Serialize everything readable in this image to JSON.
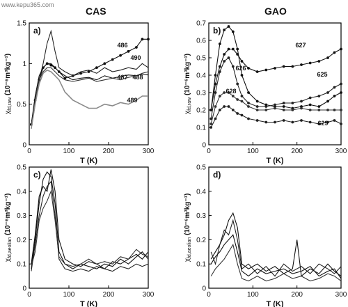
{
  "watermark": "www.kepu365.com",
  "column_titles": [
    "CAS",
    "GAO"
  ],
  "chart_data": [
    {
      "panel": "a)",
      "type": "line",
      "xlabel": "T (K)",
      "ylabel_main": "χ",
      "ylabel_sub": "fd,raw",
      "ylabel_unit": "(10⁻⁶m³kg⁻¹)",
      "xlim": [
        0,
        300
      ],
      "ylim": [
        0,
        1.5
      ],
      "xticks": [
        0,
        100,
        200,
        300
      ],
      "yticks": [
        0,
        0.5,
        1,
        1.5
      ],
      "ytick_labels": [
        "0",
        "0.5",
        "1",
        "1.5"
      ],
      "series": [
        {
          "name": "486",
          "color": "#111111",
          "marker": "dot",
          "x": [
            5,
            15,
            25,
            35,
            45,
            55,
            65,
            75,
            90,
            110,
            130,
            150,
            170,
            190,
            210,
            230,
            250,
            270,
            285,
            300
          ],
          "y": [
            0.25,
            0.55,
            0.8,
            0.95,
            1.0,
            0.98,
            0.95,
            0.9,
            0.82,
            0.85,
            0.88,
            0.9,
            0.95,
            1.0,
            1.05,
            1.1,
            1.15,
            1.2,
            1.3,
            1.3
          ]
        },
        {
          "name": "490",
          "color": "#222222",
          "marker": "none",
          "x": [
            5,
            15,
            25,
            35,
            45,
            55,
            65,
            75,
            90,
            110,
            130,
            150,
            170,
            190,
            210,
            230,
            250,
            270,
            285,
            300
          ],
          "y": [
            0.2,
            0.5,
            0.8,
            1.0,
            1.25,
            1.4,
            1.15,
            0.95,
            0.9,
            0.85,
            0.9,
            0.92,
            0.88,
            0.95,
            0.9,
            0.92,
            0.95,
            0.93,
            1.0,
            0.95
          ]
        },
        {
          "name": "487",
          "color": "#111111",
          "marker": "none",
          "x": [
            5,
            15,
            25,
            35,
            45,
            55,
            65,
            75,
            90,
            110,
            130,
            150,
            170,
            190,
            210,
            230,
            250,
            270,
            285,
            300
          ],
          "y": [
            0.25,
            0.6,
            0.85,
            0.95,
            1.0,
            1.0,
            0.95,
            0.9,
            0.85,
            0.8,
            0.82,
            0.83,
            0.8,
            0.85,
            0.82,
            0.84,
            0.86,
            0.85,
            0.87,
            0.86
          ]
        },
        {
          "name": "488",
          "color": "#333333",
          "marker": "none",
          "x": [
            5,
            15,
            25,
            35,
            45,
            55,
            65,
            75,
            90,
            110,
            130,
            150,
            170,
            190,
            210,
            230,
            250,
            270,
            285,
            300
          ],
          "y": [
            0.2,
            0.55,
            0.8,
            0.9,
            0.95,
            0.95,
            0.9,
            0.85,
            0.8,
            0.78,
            0.8,
            0.82,
            0.78,
            0.8,
            0.82,
            0.8,
            0.83,
            0.85,
            0.88,
            0.9
          ]
        },
        {
          "name": "489",
          "color": "#8a8a8a",
          "marker": "none",
          "x": [
            5,
            15,
            25,
            35,
            45,
            55,
            65,
            75,
            90,
            110,
            130,
            150,
            170,
            190,
            210,
            230,
            250,
            270,
            285,
            300
          ],
          "y": [
            0.2,
            0.5,
            0.75,
            0.88,
            0.92,
            0.9,
            0.85,
            0.8,
            0.65,
            0.55,
            0.5,
            0.45,
            0.45,
            0.5,
            0.48,
            0.52,
            0.5,
            0.55,
            0.6,
            0.6
          ]
        }
      ]
    },
    {
      "panel": "b)",
      "type": "line",
      "xlabel": "T (K)",
      "ylabel_main": "χ",
      "ylabel_sub": "fd,raw",
      "ylabel_unit": "(10⁻⁶m³kg⁻¹)",
      "xlim": [
        0,
        300
      ],
      "ylim": [
        0,
        0.7
      ],
      "xticks": [
        0,
        100,
        200,
        300
      ],
      "yticks": [
        0,
        0.1,
        0.2,
        0.3,
        0.4,
        0.5,
        0.6,
        0.7
      ],
      "ytick_labels": [
        "0",
        "0.1",
        "0.2",
        "0.3",
        "0.4",
        "0.5",
        "0.6",
        "0.7"
      ],
      "series": [
        {
          "name": "627",
          "color": "#111111",
          "marker": "dot",
          "x": [
            5,
            15,
            25,
            35,
            45,
            55,
            65,
            75,
            90,
            110,
            130,
            150,
            170,
            190,
            210,
            230,
            250,
            270,
            285,
            300
          ],
          "y": [
            0.2,
            0.35,
            0.45,
            0.52,
            0.55,
            0.55,
            0.52,
            0.48,
            0.44,
            0.42,
            0.43,
            0.44,
            0.45,
            0.45,
            0.46,
            0.47,
            0.48,
            0.5,
            0.53,
            0.55
          ]
        },
        {
          "name": "626",
          "color": "#111111",
          "marker": "dot",
          "x": [
            5,
            15,
            25,
            35,
            45,
            55,
            65,
            75,
            90,
            110,
            130,
            150,
            170,
            190,
            210,
            230,
            250,
            270,
            285,
            300
          ],
          "y": [
            0.2,
            0.4,
            0.58,
            0.66,
            0.68,
            0.65,
            0.55,
            0.4,
            0.3,
            0.25,
            0.23,
            0.22,
            0.22,
            0.21,
            0.22,
            0.23,
            0.22,
            0.25,
            0.28,
            0.3
          ]
        },
        {
          "name": "625",
          "color": "#222222",
          "marker": "dot",
          "x": [
            5,
            15,
            25,
            35,
            45,
            55,
            65,
            75,
            90,
            110,
            130,
            150,
            170,
            190,
            210,
            230,
            250,
            270,
            285,
            300
          ],
          "y": [
            0.15,
            0.3,
            0.42,
            0.48,
            0.5,
            0.45,
            0.35,
            0.28,
            0.24,
            0.22,
            0.22,
            0.23,
            0.24,
            0.24,
            0.25,
            0.27,
            0.28,
            0.3,
            0.33,
            0.35
          ]
        },
        {
          "name": "628",
          "color": "#333333",
          "marker": "dot",
          "x": [
            5,
            15,
            25,
            35,
            45,
            55,
            65,
            75,
            90,
            110,
            130,
            150,
            170,
            190,
            210,
            230,
            250,
            270,
            285,
            300
          ],
          "y": [
            0.12,
            0.22,
            0.28,
            0.3,
            0.3,
            0.28,
            0.26,
            0.25,
            0.22,
            0.2,
            0.2,
            0.21,
            0.2,
            0.2,
            0.21,
            0.2,
            0.2,
            0.2,
            0.2,
            0.2
          ]
        },
        {
          "name": "629",
          "color": "#222222",
          "marker": "dot",
          "x": [
            5,
            15,
            25,
            35,
            45,
            55,
            65,
            75,
            90,
            110,
            130,
            150,
            170,
            190,
            210,
            230,
            250,
            270,
            285,
            300
          ],
          "y": [
            0.1,
            0.15,
            0.2,
            0.22,
            0.22,
            0.2,
            0.18,
            0.17,
            0.15,
            0.14,
            0.13,
            0.13,
            0.14,
            0.13,
            0.14,
            0.13,
            0.12,
            0.13,
            0.14,
            0.12
          ]
        }
      ]
    },
    {
      "panel": "c)",
      "type": "line",
      "xlabel": "T (K)",
      "ylabel_main": "χ",
      "ylabel_sub": "fd,aeolian",
      "ylabel_unit": "(10⁻⁶m³kg⁻¹)",
      "xlim": [
        0,
        300
      ],
      "ylim": [
        0,
        0.5
      ],
      "xticks": [
        0,
        100,
        200,
        300
      ],
      "yticks": [
        0,
        0.1,
        0.2,
        0.3,
        0.4,
        0.5
      ],
      "ytick_labels": [
        "0",
        "0.1",
        "0.2",
        "0.3",
        "0.4",
        "0.5"
      ],
      "series": [
        {
          "color": "#111111",
          "x": [
            5,
            15,
            25,
            35,
            45,
            55,
            65,
            75,
            90,
            110,
            130,
            150,
            170,
            190,
            210,
            230,
            250,
            270,
            285,
            300
          ],
          "y": [
            0.08,
            0.2,
            0.35,
            0.45,
            0.48,
            0.46,
            0.35,
            0.15,
            0.1,
            0.08,
            0.1,
            0.09,
            0.08,
            0.1,
            0.09,
            0.12,
            0.1,
            0.13,
            0.15,
            0.12
          ]
        },
        {
          "color": "#111111",
          "x": [
            5,
            15,
            25,
            35,
            45,
            55,
            65,
            75,
            90,
            110,
            130,
            150,
            170,
            190,
            210,
            230,
            250,
            270,
            285,
            300
          ],
          "y": [
            0.1,
            0.22,
            0.38,
            0.42,
            0.4,
            0.49,
            0.4,
            0.2,
            0.12,
            0.1,
            0.09,
            0.11,
            0.1,
            0.08,
            0.11,
            0.1,
            0.12,
            0.14,
            0.12,
            0.15
          ]
        },
        {
          "color": "#222222",
          "x": [
            5,
            15,
            25,
            35,
            45,
            55,
            65,
            75,
            90,
            110,
            130,
            150,
            170,
            190,
            210,
            230,
            250,
            270,
            285,
            300
          ],
          "y": [
            0.07,
            0.18,
            0.3,
            0.38,
            0.42,
            0.44,
            0.3,
            0.12,
            0.08,
            0.07,
            0.08,
            0.07,
            0.09,
            0.08,
            0.07,
            0.09,
            0.08,
            0.1,
            0.09,
            0.1
          ]
        },
        {
          "color": "#333333",
          "x": [
            5,
            15,
            25,
            35,
            45,
            55,
            65,
            75,
            90,
            110,
            130,
            150,
            170,
            190,
            210,
            230,
            250,
            270,
            285,
            300
          ],
          "y": [
            0.09,
            0.15,
            0.28,
            0.33,
            0.36,
            0.4,
            0.28,
            0.13,
            0.1,
            0.09,
            0.1,
            0.12,
            0.1,
            0.11,
            0.1,
            0.13,
            0.12,
            0.16,
            0.14,
            0.13
          ]
        }
      ]
    },
    {
      "panel": "d)",
      "type": "line",
      "xlabel": "T (K)",
      "ylabel_main": "χ",
      "ylabel_sub": "fd,aeolian",
      "ylabel_unit": "(10⁻⁶m³kg⁻¹)",
      "xlim": [
        0,
        300
      ],
      "ylim": [
        0,
        0.5
      ],
      "xticks": [
        0,
        100,
        200,
        300
      ],
      "yticks": [
        0,
        0.1,
        0.2,
        0.3,
        0.4,
        0.5
      ],
      "ytick_labels": [
        "0",
        "0.1",
        "0.2",
        "0.3",
        "0.4",
        "0.5"
      ],
      "series": [
        {
          "color": "#111111",
          "x": [
            5,
            15,
            25,
            35,
            45,
            55,
            65,
            75,
            90,
            110,
            130,
            150,
            170,
            190,
            200,
            210,
            230,
            250,
            270,
            285,
            300
          ],
          "y": [
            0.12,
            0.15,
            0.18,
            0.22,
            0.28,
            0.31,
            0.25,
            0.1,
            0.08,
            0.1,
            0.07,
            0.09,
            0.06,
            0.08,
            0.2,
            0.05,
            0.08,
            0.06,
            0.1,
            0.07,
            0.05
          ]
        },
        {
          "color": "#222222",
          "x": [
            5,
            15,
            25,
            35,
            45,
            55,
            65,
            75,
            90,
            110,
            130,
            150,
            170,
            190,
            210,
            230,
            250,
            270,
            285,
            300
          ],
          "y": [
            0.15,
            0.1,
            0.18,
            0.24,
            0.22,
            0.28,
            0.2,
            0.08,
            0.1,
            0.06,
            0.09,
            0.05,
            0.1,
            0.07,
            0.09,
            0.06,
            0.1,
            0.08,
            0.06,
            0.09
          ]
        },
        {
          "color": "#111111",
          "x": [
            5,
            15,
            25,
            35,
            45,
            55,
            65,
            75,
            90,
            110,
            130,
            150,
            170,
            190,
            210,
            230,
            250,
            270,
            285,
            300
          ],
          "y": [
            0.1,
            0.13,
            0.15,
            0.18,
            0.2,
            0.22,
            0.15,
            0.07,
            0.05,
            0.08,
            0.06,
            0.07,
            0.08,
            0.06,
            0.07,
            0.09,
            0.05,
            0.07,
            0.08,
            0.04
          ]
        },
        {
          "color": "#333333",
          "x": [
            5,
            15,
            25,
            35,
            45,
            55,
            65,
            75,
            90,
            110,
            130,
            150,
            170,
            190,
            210,
            230,
            250,
            270,
            285,
            300
          ],
          "y": [
            0.05,
            0.08,
            0.1,
            0.12,
            0.15,
            0.18,
            0.1,
            0.04,
            0.03,
            0.05,
            0.03,
            0.04,
            0.06,
            0.04,
            0.05,
            0.03,
            0.04,
            0.06,
            0.05,
            0.03
          ]
        }
      ]
    }
  ]
}
